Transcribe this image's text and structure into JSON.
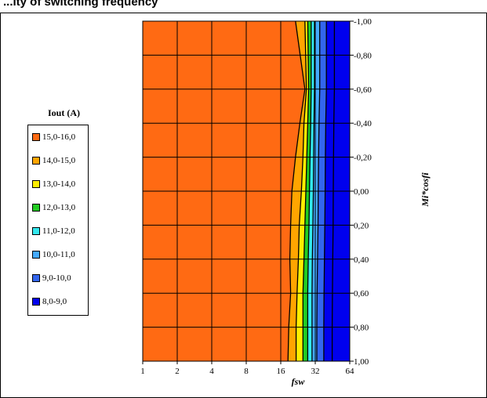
{
  "header": {
    "title": "...ity of switching frequency"
  },
  "chart_data": {
    "type": "contour",
    "xlabel": "fsw",
    "ylabel": "Mi*cosfi",
    "x_ticks": [
      "1",
      "2",
      "4",
      "8",
      "16",
      "32",
      "64"
    ],
    "x_log2": true,
    "xlim": [
      1,
      64
    ],
    "y_ticks": [
      "-1,00",
      "-0,80",
      "-0,60",
      "-0,40",
      "-0,20",
      "0,00",
      "0,20",
      "0,40",
      "0,60",
      "0,80",
      "1,00"
    ],
    "y_values": [
      -1.0,
      -0.8,
      -0.6,
      -0.4,
      -0.2,
      0.0,
      0.2,
      0.4,
      0.6,
      0.8,
      1.0
    ],
    "ylim": [
      1.0,
      -1.0
    ],
    "y_direction": "top-to-bottom increasing",
    "grid": true,
    "legend": {
      "title": "Iout (A)",
      "position": "left",
      "entries": [
        {
          "label": "15,0-16,0",
          "color": "#FF6A13"
        },
        {
          "label": "14,0-15,0",
          "color": "#FFA500"
        },
        {
          "label": "13,0-14,0",
          "color": "#FFEE00"
        },
        {
          "label": "12,0-13,0",
          "color": "#22CC22"
        },
        {
          "label": "11,0-12,0",
          "color": "#33E8EE"
        },
        {
          "label": "10,0-11,0",
          "color": "#44AAFF"
        },
        {
          "label": "9,0-10,0",
          "color": "#3366EE"
        },
        {
          "label": "8,0-9,0",
          "color": "#0000EE"
        }
      ]
    },
    "contours": [
      {
        "level": 15.0,
        "x_at_y": [
          [
            -1.0,
            21.5
          ],
          [
            -0.6,
            26.0
          ],
          [
            -0.4,
            23.5
          ],
          [
            -0.2,
            21.5
          ],
          [
            0.0,
            20.0
          ],
          [
            0.2,
            19.5
          ],
          [
            0.4,
            19.2
          ],
          [
            0.6,
            19.5
          ],
          [
            0.8,
            18.8
          ],
          [
            1.0,
            18.5
          ]
        ]
      },
      {
        "level": 14.0,
        "x_at_y": [
          [
            -1.0,
            26.0
          ],
          [
            -0.6,
            26.8
          ],
          [
            -0.4,
            25.5
          ],
          [
            -0.2,
            25.0
          ],
          [
            0.0,
            24.2
          ],
          [
            0.2,
            23.2
          ],
          [
            0.4,
            22.8
          ],
          [
            0.6,
            22.2
          ],
          [
            0.8,
            21.8
          ],
          [
            1.0,
            21.8
          ]
        ]
      },
      {
        "level": 13.0,
        "x_at_y": [
          [
            -1.0,
            27.5
          ],
          [
            -0.6,
            28.0
          ],
          [
            -0.4,
            27.5
          ],
          [
            -0.2,
            27.0
          ],
          [
            0.0,
            26.5
          ],
          [
            0.2,
            26.0
          ],
          [
            0.4,
            25.5
          ],
          [
            0.6,
            25.0
          ],
          [
            0.8,
            25.0
          ],
          [
            1.0,
            25.0
          ]
        ]
      },
      {
        "level": 12.0,
        "x_at_y": [
          [
            -1.0,
            29.5
          ],
          [
            -0.6,
            29.5
          ],
          [
            -0.4,
            29.2
          ],
          [
            -0.2,
            28.8
          ],
          [
            0.0,
            28.5
          ],
          [
            0.2,
            28.2
          ],
          [
            0.4,
            27.8
          ],
          [
            0.6,
            27.5
          ],
          [
            0.8,
            27.5
          ],
          [
            1.0,
            27.5
          ]
        ]
      },
      {
        "level": 11.0,
        "x_at_y": [
          [
            -1.0,
            31.5
          ],
          [
            -0.6,
            31.5
          ],
          [
            -0.4,
            31.2
          ],
          [
            -0.2,
            31.0
          ],
          [
            0.0,
            30.8
          ],
          [
            0.2,
            30.5
          ],
          [
            0.4,
            30.2
          ],
          [
            0.6,
            30.0
          ],
          [
            0.8,
            30.0
          ],
          [
            1.0,
            30.0
          ]
        ]
      },
      {
        "level": 10.0,
        "x_at_y": [
          [
            -1.0,
            35.0
          ],
          [
            -0.6,
            35.0
          ],
          [
            -0.4,
            34.5
          ],
          [
            -0.2,
            34.2
          ],
          [
            0.0,
            34.0
          ],
          [
            0.2,
            33.8
          ],
          [
            0.4,
            33.5
          ],
          [
            0.6,
            33.2
          ],
          [
            0.8,
            33.0
          ],
          [
            1.0,
            33.0
          ]
        ]
      },
      {
        "level": 9.0,
        "x_at_y": [
          [
            -1.0,
            40.0
          ],
          [
            -0.6,
            40.0
          ],
          [
            -0.4,
            39.5
          ],
          [
            -0.2,
            39.2
          ],
          [
            0.0,
            39.0
          ],
          [
            0.2,
            38.8
          ],
          [
            0.4,
            38.5
          ],
          [
            0.6,
            38.2
          ],
          [
            0.8,
            38.0
          ],
          [
            1.0,
            38.0
          ]
        ]
      },
      {
        "level": 8.0,
        "x_at_y": [
          [
            -1.0,
            47.0
          ],
          [
            -0.6,
            47.0
          ],
          [
            -0.4,
            46.5
          ],
          [
            -0.2,
            46.2
          ],
          [
            0.0,
            46.0
          ],
          [
            0.2,
            45.8
          ],
          [
            0.4,
            45.5
          ],
          [
            0.6,
            45.2
          ],
          [
            0.8,
            45.0
          ],
          [
            1.0,
            45.0
          ]
        ]
      }
    ]
  }
}
